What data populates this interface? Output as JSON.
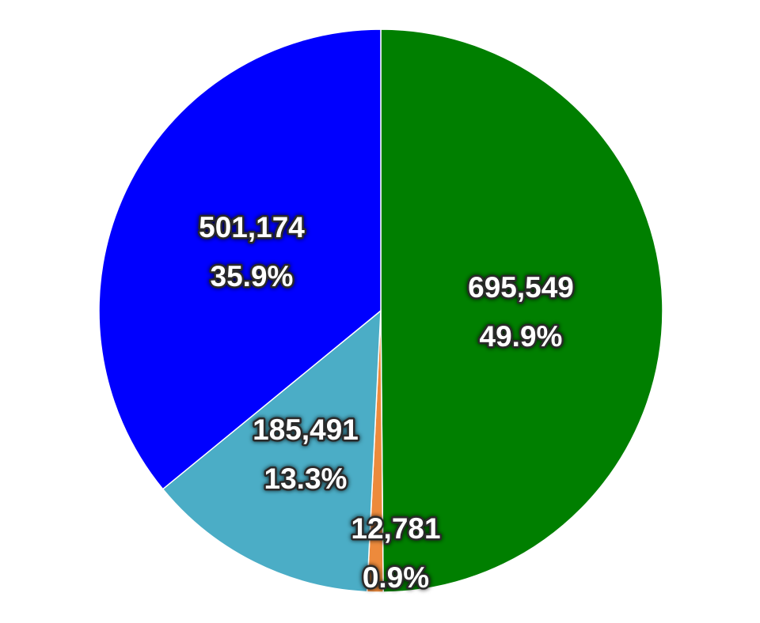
{
  "chart_data": {
    "type": "pie",
    "values": [
      695549,
      12781,
      185491,
      501174
    ],
    "value_labels": [
      "695,549",
      "12,781",
      "185,491",
      "501,174"
    ],
    "percent_labels": [
      "49.9%",
      "0.9%",
      "13.3%",
      "35.9%"
    ],
    "colors": [
      "#007f00",
      "#ed8a3c",
      "#4badc6",
      "#0000ff"
    ]
  }
}
